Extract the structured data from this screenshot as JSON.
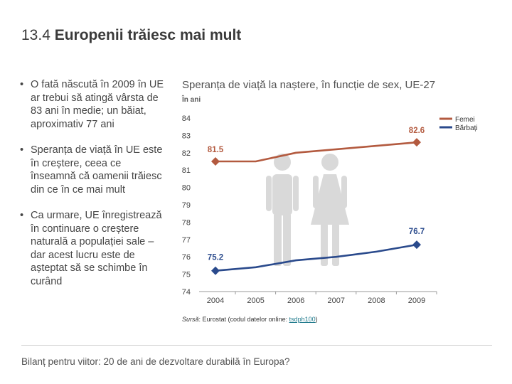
{
  "slide": {
    "number": "13.4",
    "title": "Europenii trăiesc mai mult",
    "bullets": [
      "O fată născută în 2009 în UE ar trebui să atingă vârsta de 83 ani în medie; un băiat, aproximativ 77 ani",
      "Speranța de viață în UE este în creștere, ceea ce înseamnă că oamenii trăiesc din ce în ce mai mult",
      "Ca urmare, UE înregistrează în continuare o creștere naturală a populației sale – dar acest lucru este de așteptat să se schimbe în curând"
    ],
    "source_label": "Sursă",
    "source_text": ": Eurostat (codul datelor online: ",
    "source_code": "tsdph100",
    "source_end": ")",
    "footer": "Bilanț pentru viitor: 20 de ani de dezvoltare durabilă în Europa?"
  },
  "chart_data": {
    "type": "line",
    "title": "Speranța de viață la naștere, în funcție de sex, UE-27",
    "unit": "În ani",
    "x": [
      2004,
      2005,
      2006,
      2007,
      2008,
      2009
    ],
    "ylim": [
      74,
      84
    ],
    "yticks": [
      74,
      75,
      76,
      77,
      78,
      79,
      80,
      81,
      82,
      83,
      84
    ],
    "legend_position": "top-right",
    "series": [
      {
        "name": "Femei",
        "color": "#b35a3f",
        "values": [
          81.5,
          81.5,
          82.0,
          82.2,
          82.4,
          82.6
        ],
        "labels": [
          "81.5",
          null,
          null,
          null,
          null,
          "82.6"
        ]
      },
      {
        "name": "Bărbați",
        "color": "#2a4a8c",
        "values": [
          75.2,
          75.4,
          75.8,
          76.0,
          76.3,
          76.7
        ],
        "labels": [
          "75.2",
          null,
          null,
          null,
          null,
          "76.7"
        ]
      }
    ],
    "colors": {
      "axis": "#999999",
      "tick_text": "#444444",
      "silhouette": "#d9d9d9",
      "grid": "none"
    }
  }
}
